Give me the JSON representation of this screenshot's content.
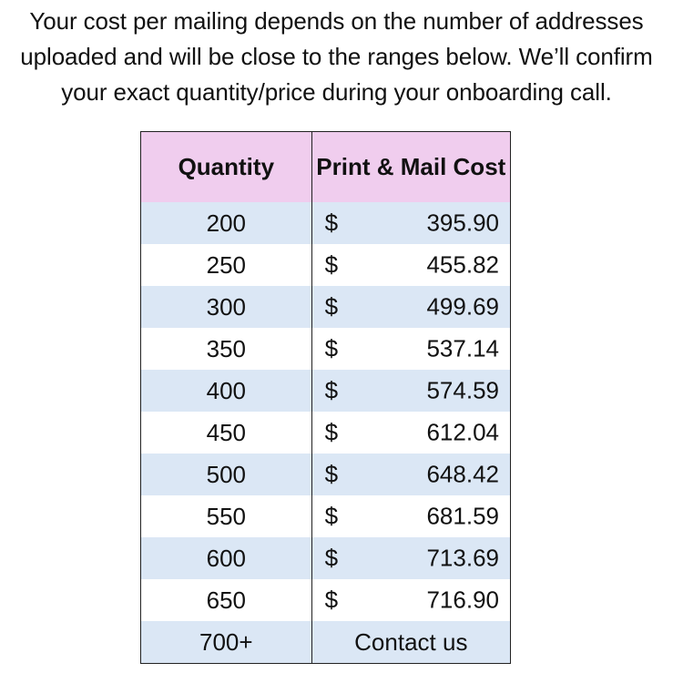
{
  "intro": {
    "lines": [
      "Your cost per mailing depends on the number of addresses",
      "uploaded and will be close to the ranges below. We’ll confirm",
      "your exact quantity/price during your onboarding call."
    ]
  },
  "table": {
    "headers": {
      "quantity": "Quantity",
      "cost": "Print & Mail Cost"
    },
    "rows": [
      {
        "quantity": "200",
        "currency": "$",
        "amount": "395.90"
      },
      {
        "quantity": "250",
        "currency": "$",
        "amount": "455.82"
      },
      {
        "quantity": "300",
        "currency": "$",
        "amount": "499.69"
      },
      {
        "quantity": "350",
        "currency": "$",
        "amount": "537.14"
      },
      {
        "quantity": "400",
        "currency": "$",
        "amount": "574.59"
      },
      {
        "quantity": "450",
        "currency": "$",
        "amount": "612.04"
      },
      {
        "quantity": "500",
        "currency": "$",
        "amount": "648.42"
      },
      {
        "quantity": "550",
        "currency": "$",
        "amount": "681.59"
      },
      {
        "quantity": "600",
        "currency": "$",
        "amount": "713.69"
      },
      {
        "quantity": "650",
        "currency": "$",
        "amount": "716.90"
      }
    ],
    "final_row": {
      "quantity": "700+",
      "text": "Contact us"
    },
    "colors": {
      "header_bg": "#f0cdee",
      "shaded_row_bg": "#dbe7f5",
      "plain_row_bg": "#ffffff"
    }
  }
}
